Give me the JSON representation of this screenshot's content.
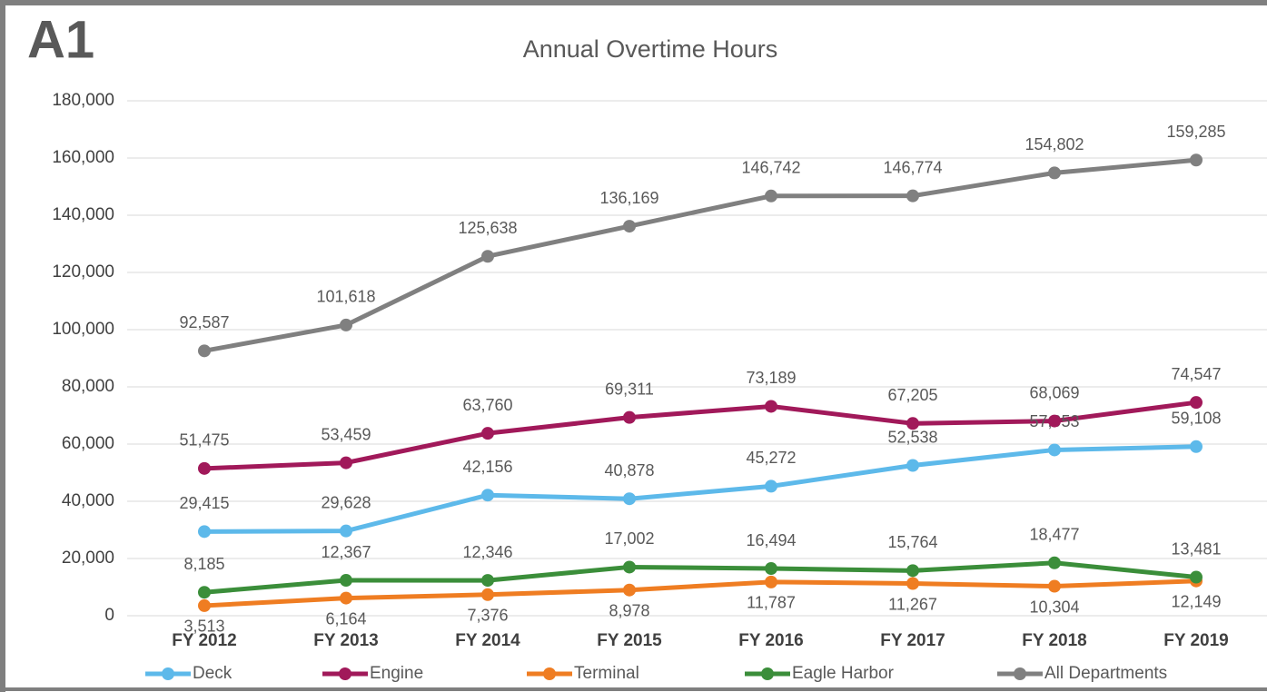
{
  "chart_data": {
    "type": "line",
    "badge": "A1",
    "title": "Annual Overtime Hours",
    "categories": [
      "FY 2012",
      "FY 2013",
      "FY 2014",
      "FY 2015",
      "FY 2016",
      "FY 2017",
      "FY 2018",
      "FY 2019"
    ],
    "ylim": [
      0,
      180000
    ],
    "yticks": [
      0,
      {
        "value": 20000,
        "label": "20,000"
      },
      {
        "value": 40000,
        "label": "40,000"
      },
      {
        "value": 60000,
        "label": "60,000"
      },
      {
        "value": 80000,
        "label": "80,000"
      },
      {
        "value": 100000,
        "label": "100,000"
      },
      {
        "value": 120000,
        "label": "120,000"
      },
      {
        "value": 140000,
        "label": "140,000"
      },
      {
        "value": 160000,
        "label": "160,000"
      },
      {
        "value": 180000,
        "label": "180,000"
      }
    ],
    "grid": true,
    "legend": "bottom",
    "series": [
      {
        "name": "Deck",
        "color": "#5db9ea",
        "values": [
          29415,
          29628,
          42156,
          40878,
          45272,
          52538,
          57953,
          59108
        ],
        "value_labels": [
          "29,415",
          "29,628",
          "42,156",
          "40,878",
          "45,272",
          "52,538",
          "57,953",
          "59,108"
        ]
      },
      {
        "name": "Engine",
        "color": "#a1195a",
        "values": [
          51475,
          53459,
          63760,
          69311,
          73189,
          67205,
          68069,
          74547
        ],
        "value_labels": [
          "51,475",
          "53,459",
          "63,760",
          "69,311",
          "73,189",
          "67,205",
          "68,069",
          "74,547"
        ]
      },
      {
        "name": "Terminal",
        "color": "#ef7d22",
        "values": [
          3513,
          6164,
          7376,
          8978,
          11787,
          11267,
          10304,
          12149
        ],
        "value_labels": [
          "3,513",
          "6,164",
          "7,376",
          "8,978",
          "11,787",
          "11,267",
          "10,304",
          "12,149"
        ]
      },
      {
        "name": "Eagle Harbor",
        "color": "#3b8e3a",
        "values": [
          8185,
          12367,
          12346,
          17002,
          16494,
          15764,
          18477,
          13481
        ],
        "value_labels": [
          "8,185",
          "12,367",
          "12,346",
          "17,002",
          "16,494",
          "15,764",
          "18,477",
          "13,481"
        ]
      },
      {
        "name": "All Departments",
        "color": "#808080",
        "values": [
          92587,
          101618,
          125638,
          136169,
          146742,
          146774,
          154802,
          159285
        ],
        "value_labels": [
          "92,587",
          "101,618",
          "125,638",
          "136,169",
          "146,742",
          "146,774",
          "154,802",
          "159,285"
        ]
      }
    ]
  }
}
